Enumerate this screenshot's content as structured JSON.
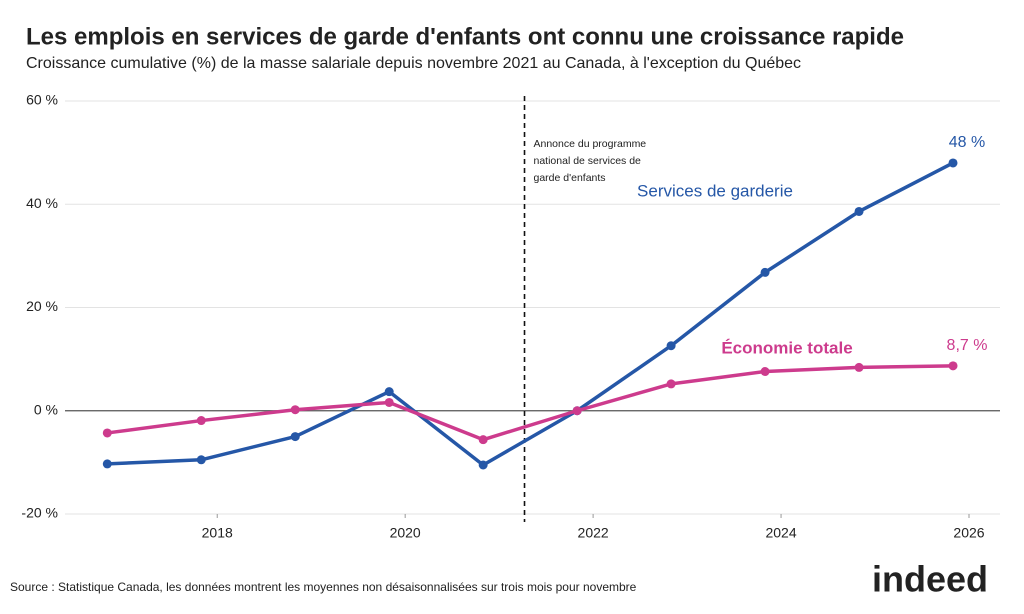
{
  "chart_data": {
    "type": "line",
    "title": "Les emplois en services de garde d'enfants ont connu une croissance rapide",
    "subtitle": "Croissance cumulative (%) de la masse salariale depuis novembre 2021 au Canada, à l'exception du Québec",
    "x": [
      2016.83,
      2017.83,
      2018.83,
      2019.83,
      2020.83,
      2021.83,
      2022.83,
      2023.83,
      2024.83,
      2025.83
    ],
    "series": [
      {
        "name": "Services de garderie",
        "color": "#2557a7",
        "values": [
          -10.3,
          -9.5,
          -5.0,
          3.7,
          -10.5,
          0,
          12.6,
          26.8,
          38.6,
          48
        ],
        "value_labels": [
          null,
          null,
          null,
          null,
          null,
          null,
          null,
          null,
          null,
          "48 %"
        ]
      },
      {
        "name": "Économie totale",
        "color": "#cd3b8d",
        "values": [
          -4.3,
          -1.9,
          0.2,
          1.6,
          -5.6,
          0,
          5.2,
          7.6,
          8.4,
          8.7
        ],
        "value_labels": [
          null,
          null,
          null,
          null,
          null,
          null,
          null,
          null,
          null,
          "8,7 %"
        ]
      }
    ],
    "xlim": [
      2016.38,
      2026.33
    ],
    "xticks": [
      2018,
      2020,
      2022,
      2024,
      2026
    ],
    "ylim": [
      -20,
      60
    ],
    "yticks": [
      {
        "value": -20,
        "label": "-20 %"
      },
      {
        "value": 0,
        "label": "0 %"
      },
      {
        "value": 20,
        "label": "20 %"
      },
      {
        "value": 40,
        "label": "40 %"
      },
      {
        "value": 60,
        "label": "60 %"
      }
    ],
    "grid": true,
    "vline": {
      "x": 2021.27,
      "label": [
        "Annonce du programme",
        "national de services de",
        "garde d'enfants"
      ]
    },
    "source": "Source : Statistique Canada, les données montrent les moyennes non désaisonnalisées sur trois mois pour novembre",
    "brand": "indeed"
  }
}
